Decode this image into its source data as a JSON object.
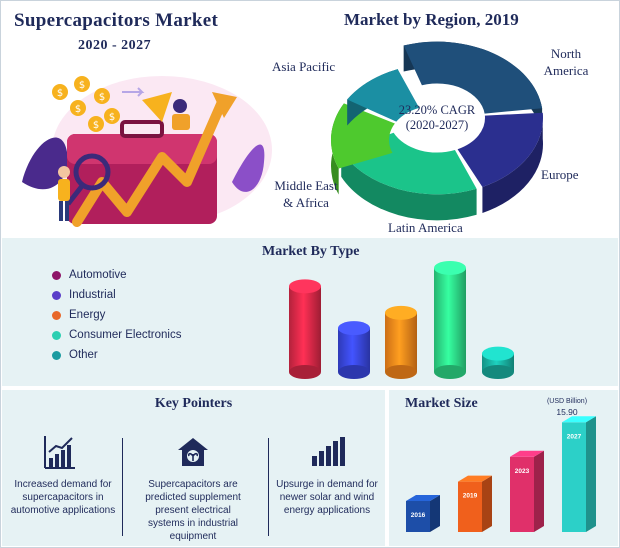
{
  "header": {
    "title": "Supercapacitors Market",
    "years": "2020 - 2027"
  },
  "region": {
    "title": "Market by Region, 2019",
    "cagr_line1": "23.20% CAGR",
    "cagr_line2": "(2020-2027)",
    "labels": {
      "asia_pacific": "Asia Pacific",
      "north_america_1": "North",
      "north_america_2": "America",
      "europe": "Europe",
      "latin_america": "Latin America",
      "mea_1": "Middle East",
      "mea_2": "& Africa"
    }
  },
  "type_section": {
    "title": "Market By Type",
    "legend": [
      {
        "label": "Automotive",
        "color": "#8e1568"
      },
      {
        "label": "Industrial",
        "color": "#5a3fc9"
      },
      {
        "label": "Energy",
        "color": "#e8682a"
      },
      {
        "label": "Consumer Electronics",
        "color": "#2ccfb2"
      },
      {
        "label": "Other",
        "color": "#1a9ba0"
      }
    ]
  },
  "key_pointers": {
    "title": "Key Pointers",
    "items": [
      {
        "text": "Increased demand for supercapacitors in automotive applications",
        "icon": "bar-chart-growth-icon"
      },
      {
        "text": "Supercapacitors are predicted supplement present electrical systems in industrial equipment",
        "icon": "house-plant-icon"
      },
      {
        "text": "Upsurge in demand for newer solar and wind energy applications",
        "icon": "ascending-bars-icon"
      }
    ]
  },
  "market_size": {
    "title": "Market Size",
    "unit": "(USD Billion)",
    "value_label": "15.90",
    "years": [
      "2016",
      "2019",
      "2023",
      "2027"
    ]
  },
  "chart_data": [
    {
      "type": "pie",
      "title": "Market by Region, 2019",
      "categories": [
        "Asia Pacific",
        "North America",
        "Europe",
        "Latin America",
        "Middle East & Africa"
      ],
      "values": [
        29,
        20,
        25,
        15,
        11
      ],
      "colors": [
        "#1f4f7a",
        "#2b2f8f",
        "#1bc48a",
        "#4ec92e",
        "#1b8fa3"
      ]
    },
    {
      "type": "bar",
      "title": "Market By Type",
      "categories": [
        "Automotive",
        "Industrial",
        "Energy",
        "Consumer Electronics",
        "Other"
      ],
      "values": [
        84,
        43,
        58,
        102,
        18
      ],
      "colors": [
        "#e02a4a",
        "#3a49e6",
        "#ff8a1c",
        "#2fe08c",
        "#1ab6a6"
      ],
      "grid": false
    },
    {
      "type": "bar",
      "title": "Market Size",
      "ylabel": "(USD Billion)",
      "categories": [
        "2016",
        "2019",
        "2023",
        "2027"
      ],
      "values": [
        4.5,
        7.3,
        10.9,
        15.9
      ],
      "colors": [
        "#1d4ea8",
        "#f0601c",
        "#e0306a",
        "#2cd0c8"
      ],
      "data_labels": {
        "2027": "15.90"
      }
    }
  ]
}
